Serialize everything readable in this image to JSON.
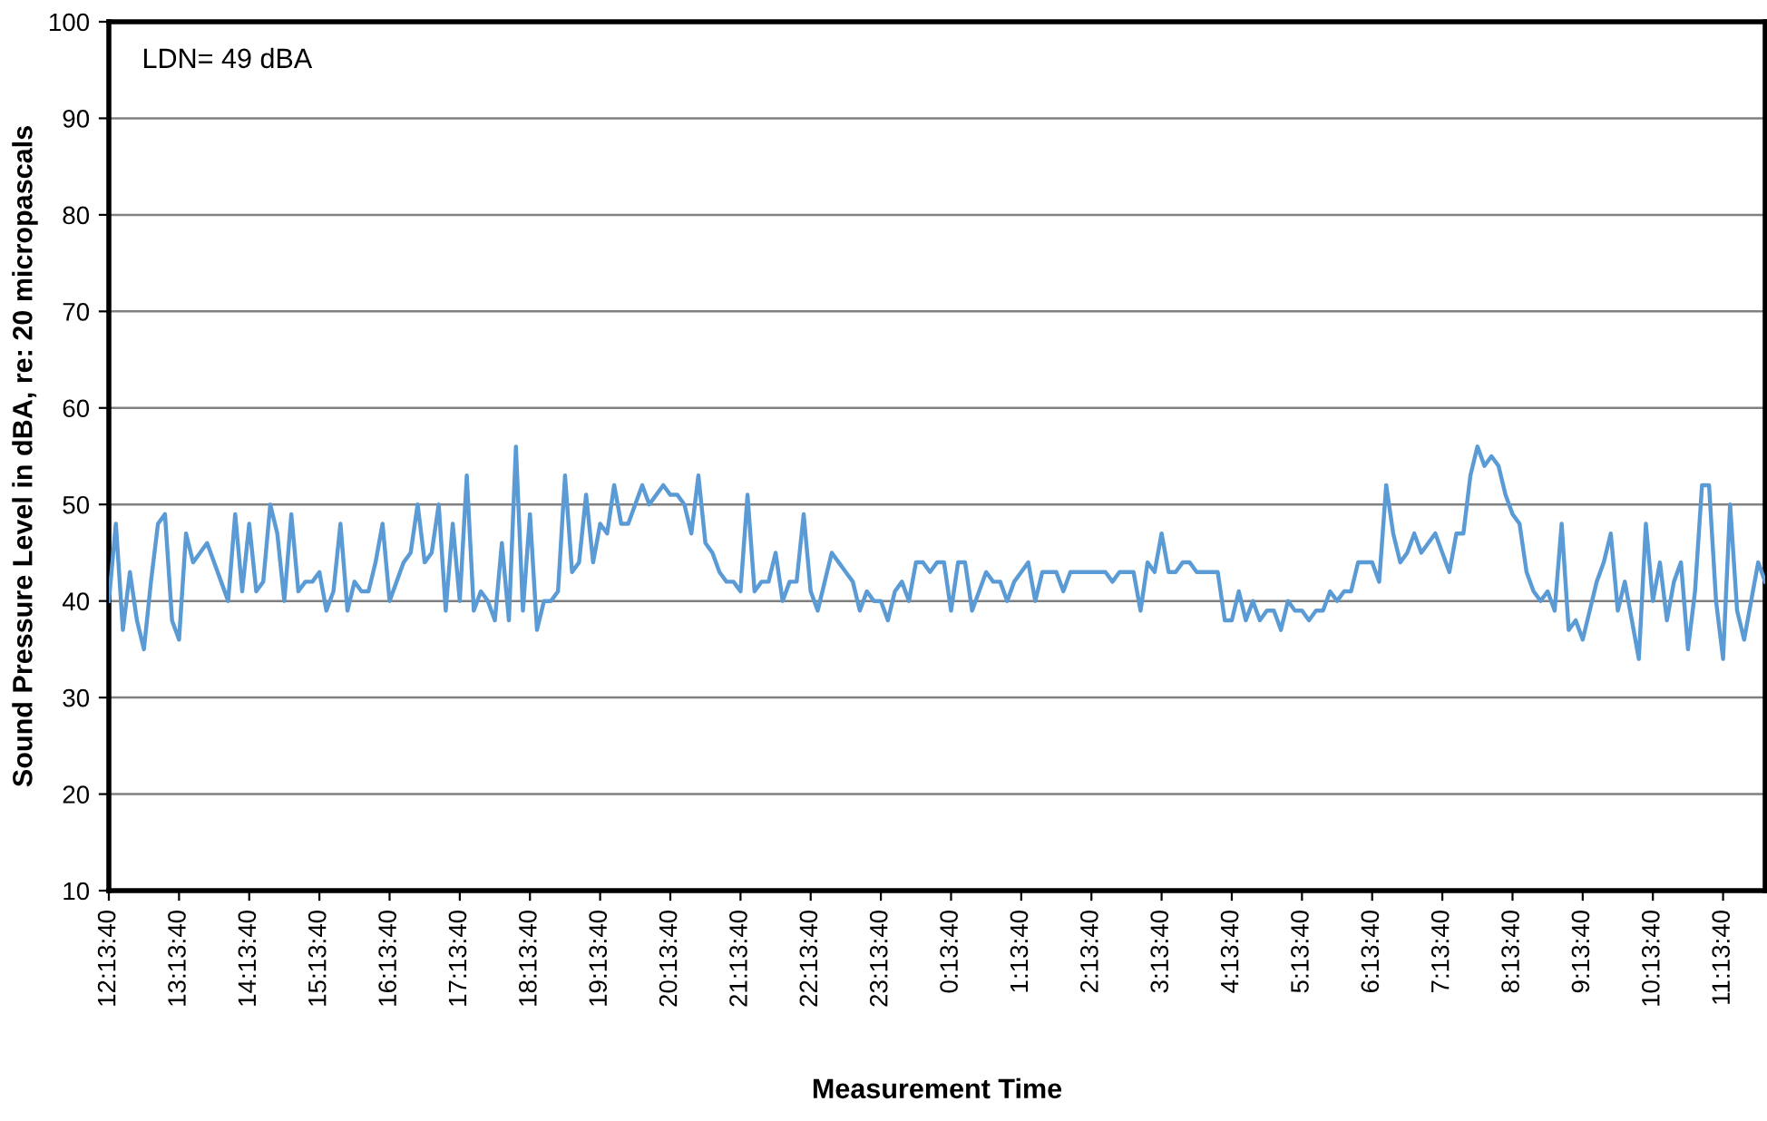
{
  "chart_data": {
    "type": "line",
    "xlabel": "Measurement Time",
    "ylabel": "Sound Pressure Level in dBA, re: 20 micropascals",
    "annotations": [
      "LDN= 49 dBA"
    ],
    "ylim": [
      10,
      100
    ],
    "yticks": [
      10,
      20,
      30,
      40,
      50,
      60,
      70,
      80,
      90,
      100
    ],
    "categories": [
      "12:13:40",
      null,
      null,
      null,
      null,
      null,
      null,
      null,
      null,
      null,
      "13:13:40",
      null,
      null,
      null,
      null,
      null,
      null,
      null,
      null,
      null,
      "14:13:40",
      null,
      null,
      null,
      null,
      null,
      null,
      null,
      null,
      null,
      "15:13:40",
      null,
      null,
      null,
      null,
      null,
      null,
      null,
      null,
      null,
      "16:13:40",
      null,
      null,
      null,
      null,
      null,
      null,
      null,
      null,
      null,
      "17:13:40",
      null,
      null,
      null,
      null,
      null,
      null,
      null,
      null,
      null,
      "18:13:40",
      null,
      null,
      null,
      null,
      null,
      null,
      null,
      null,
      null,
      "19:13:40",
      null,
      null,
      null,
      null,
      null,
      null,
      null,
      null,
      null,
      "20:13:40",
      null,
      null,
      null,
      null,
      null,
      null,
      null,
      null,
      null,
      "21:13:40",
      null,
      null,
      null,
      null,
      null,
      null,
      null,
      null,
      null,
      "22:13:40",
      null,
      null,
      null,
      null,
      null,
      null,
      null,
      null,
      null,
      "23:13:40",
      null,
      null,
      null,
      null,
      null,
      null,
      null,
      null,
      null,
      "0:13:40",
      null,
      null,
      null,
      null,
      null,
      null,
      null,
      null,
      null,
      "1:13:40",
      null,
      null,
      null,
      null,
      null,
      null,
      null,
      null,
      null,
      "2:13:40",
      null,
      null,
      null,
      null,
      null,
      null,
      null,
      null,
      null,
      "3:13:40",
      null,
      null,
      null,
      null,
      null,
      null,
      null,
      null,
      null,
      "4:13:40",
      null,
      null,
      null,
      null,
      null,
      null,
      null,
      null,
      null,
      "5:13:40",
      null,
      null,
      null,
      null,
      null,
      null,
      null,
      null,
      null,
      "6:13:40",
      null,
      null,
      null,
      null,
      null,
      null,
      null,
      null,
      null,
      "7:13:40",
      null,
      null,
      null,
      null,
      null,
      null,
      null,
      null,
      null,
      "8:13:40",
      null,
      null,
      null,
      null,
      null,
      null,
      null,
      null,
      null,
      "9:13:40",
      null,
      null,
      null,
      null,
      null,
      null,
      null,
      null,
      null,
      "10:13:40",
      null,
      null,
      null,
      null,
      null,
      null,
      null,
      null,
      null,
      "11:13:40",
      null,
      null,
      null,
      null,
      null,
      null
    ],
    "grid": "y",
    "marker": "none",
    "line_style": "solid",
    "series": [
      {
        "color": "#5b9bd5",
        "values": [
          40,
          48,
          37,
          43,
          38,
          35,
          42,
          48,
          49,
          38,
          36,
          47,
          44,
          45,
          46,
          44,
          42,
          40,
          49,
          41,
          48,
          41,
          42,
          50,
          47,
          40,
          49,
          41,
          42,
          42,
          43,
          39,
          41,
          48,
          39,
          42,
          41,
          41,
          44,
          48,
          40,
          42,
          44,
          45,
          50,
          44,
          45,
          50,
          39,
          48,
          40,
          53,
          39,
          41,
          40,
          38,
          46,
          38,
          56,
          39,
          49,
          37,
          40,
          40,
          41,
          53,
          43,
          44,
          51,
          44,
          48,
          47,
          52,
          48,
          48,
          50,
          52,
          50,
          51,
          52,
          51,
          51,
          50,
          47,
          53,
          46,
          45,
          43,
          42,
          42,
          41,
          51,
          41,
          42,
          42,
          45,
          40,
          42,
          42,
          49,
          41,
          39,
          42,
          45,
          44,
          43,
          42,
          39,
          41,
          40,
          40,
          38,
          41,
          42,
          40,
          44,
          44,
          43,
          44,
          44,
          39,
          44,
          44,
          39,
          41,
          43,
          42,
          42,
          40,
          42,
          43,
          44,
          40,
          43,
          43,
          43,
          41,
          43,
          43,
          43,
          43,
          43,
          43,
          42,
          43,
          43,
          43,
          39,
          44,
          43,
          47,
          43,
          43,
          44,
          44,
          43,
          43,
          43,
          43,
          38,
          38,
          41,
          38,
          40,
          38,
          39,
          39,
          37,
          40,
          39,
          39,
          38,
          39,
          39,
          41,
          40,
          41,
          41,
          44,
          44,
          44,
          42,
          52,
          47,
          44,
          45,
          47,
          45,
          46,
          47,
          45,
          43,
          47,
          47,
          53,
          56,
          54,
          55,
          54,
          51,
          49,
          48,
          43,
          41,
          40,
          41,
          39,
          48,
          37,
          38,
          36,
          39,
          42,
          44,
          47,
          39,
          42,
          38,
          34,
          48,
          40,
          44,
          38,
          42,
          44,
          35,
          41,
          52,
          52,
          40,
          34,
          50,
          39,
          36,
          40,
          44,
          42
        ]
      }
    ]
  }
}
